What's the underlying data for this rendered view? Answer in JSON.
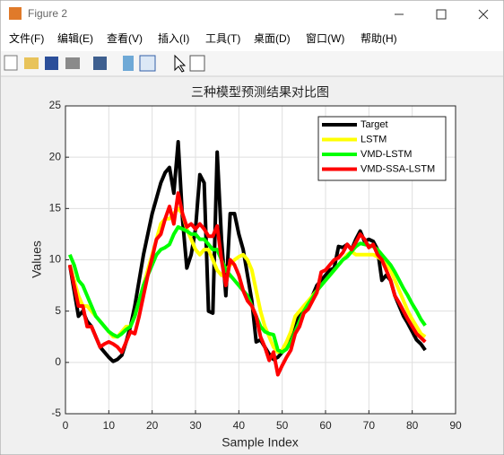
{
  "window": {
    "title": "Figure 2",
    "menu": [
      "文件(F)",
      "编辑(E)",
      "查看(V)",
      "插入(I)",
      "工具(T)",
      "桌面(D)",
      "窗口(W)",
      "帮助(H)"
    ]
  },
  "chart_data": {
    "type": "line",
    "title": "三种模型预测结果对比图",
    "x_label": "Sample Index",
    "y_label": "Values",
    "x": [
      1,
      2,
      3,
      4,
      5,
      6,
      7,
      8,
      9,
      10,
      11,
      12,
      13,
      14,
      15,
      16,
      17,
      18,
      19,
      20,
      21,
      22,
      23,
      24,
      25,
      26,
      27,
      28,
      29,
      30,
      31,
      32,
      33,
      34,
      35,
      36,
      37,
      38,
      39,
      40,
      41,
      42,
      43,
      44,
      45,
      46,
      47,
      48,
      49,
      50,
      51,
      52,
      53,
      54,
      55,
      56,
      57,
      58,
      59,
      60,
      61,
      62,
      63,
      64,
      65,
      66,
      67,
      68,
      69,
      70,
      71,
      72,
      73,
      74,
      75,
      76,
      77,
      78,
      79,
      80,
      81,
      82,
      83
    ],
    "series": [
      {
        "name": "Target",
        "color": "#000000",
        "values": [
          9.5,
          7,
          4.5,
          5,
          4,
          3.5,
          2.5,
          1.5,
          1,
          0.5,
          0.1,
          0.3,
          0.7,
          2,
          3.5,
          5.5,
          8,
          10.5,
          12.5,
          14.5,
          16,
          17.5,
          18.5,
          19,
          16.5,
          21.5,
          14,
          9.2,
          10.5,
          13,
          18.3,
          17.5,
          5,
          4.8,
          20.5,
          12,
          6.5,
          14.5,
          14.5,
          12.5,
          11,
          8.5,
          6,
          2,
          2.2,
          1.5,
          0.8,
          0.3,
          0.5,
          1,
          1.5,
          2.5,
          3.8,
          4.5,
          5,
          5.8,
          6.5,
          7.5,
          8,
          8.5,
          9,
          9.2,
          11.3,
          11.2,
          11.5,
          11,
          12,
          12.8,
          11.8,
          12,
          11.8,
          11,
          8,
          8.5,
          8,
          6.5,
          5.5,
          4.5,
          3.8,
          3,
          2.2,
          1.8,
          1.2
        ]
      },
      {
        "name": "LSTM",
        "color": "#ffff00",
        "values": [
          9.5,
          8,
          6.5,
          5.5,
          5.5,
          5,
          4.5,
          4,
          3.5,
          3,
          2.5,
          2.5,
          3,
          3.5,
          3.5,
          4.5,
          6,
          7.5,
          9,
          10.5,
          12,
          13.5,
          14,
          14,
          14.5,
          15,
          14.5,
          13,
          12,
          11,
          10.5,
          11,
          11,
          10,
          9,
          8.5,
          9,
          9.5,
          10,
          10.3,
          10.5,
          10,
          9,
          7,
          5,
          3.5,
          2.5,
          1.5,
          1,
          1.2,
          2,
          3,
          4.5,
          5,
          5.5,
          6,
          6.5,
          7,
          7.5,
          8,
          8.5,
          9,
          9.5,
          10,
          10.5,
          10.8,
          10.5,
          10.5,
          10.5,
          10.5,
          10.5,
          10.3,
          10,
          9.5,
          9,
          8,
          7,
          6,
          5,
          4.2,
          3.5,
          2.8,
          2.5
        ]
      },
      {
        "name": "VMD-LSTM",
        "color": "#00ff00",
        "values": [
          10.5,
          9.5,
          8,
          7.5,
          6.5,
          5.5,
          4.5,
          4,
          3.5,
          3,
          2.7,
          2.5,
          2.8,
          3.2,
          3.5,
          4.5,
          6,
          7.5,
          8.5,
          9.5,
          10.5,
          11,
          11.2,
          11.5,
          12.5,
          13.2,
          13,
          12.8,
          12.5,
          12.5,
          12,
          12,
          11.5,
          11,
          11,
          10,
          9,
          8.5,
          8,
          7.5,
          7,
          6.5,
          5.5,
          4.5,
          3.5,
          3,
          2.8,
          2.7,
          1.2,
          1,
          1.3,
          2,
          3,
          4,
          5,
          5.7,
          6.3,
          7,
          7.5,
          8,
          8.5,
          9,
          9.5,
          10,
          10.3,
          10.8,
          11.3,
          11.6,
          11.5,
          11.4,
          11.3,
          11,
          10.5,
          10,
          9.5,
          8.8,
          8,
          7.2,
          6.5,
          5.7,
          5,
          4.2,
          3.6
        ]
      },
      {
        "name": "VMD-SSA-LSTM",
        "color": "#ff0000",
        "values": [
          9.5,
          7.5,
          5.5,
          5.5,
          3.5,
          3.5,
          2.5,
          1.5,
          1.8,
          2,
          1.8,
          1.5,
          1,
          2,
          3,
          2.8,
          4.5,
          6.5,
          8.5,
          10.2,
          12,
          12.5,
          14,
          15.2,
          13.5,
          16.5,
          14.5,
          13.2,
          13.5,
          13,
          13.5,
          13,
          12.3,
          12.3,
          13.3,
          10,
          7.5,
          10,
          9.5,
          8.5,
          7,
          6,
          5.5,
          4.5,
          2.5,
          1.5,
          0.2,
          1,
          -1.2,
          -0.3,
          0.5,
          1.2,
          2.8,
          3.5,
          4.8,
          5.2,
          6,
          6.8,
          8.8,
          9,
          9.5,
          10,
          10.2,
          10.7,
          11.5,
          11,
          11.7,
          12.5,
          12,
          11.2,
          11.5,
          10.5,
          10,
          9,
          8,
          6.5,
          5.8,
          5,
          4.2,
          3.5,
          2.8,
          2.4,
          2
        ]
      }
    ],
    "xlim": [
      0,
      90
    ],
    "xticks": [
      0,
      10,
      20,
      30,
      40,
      50,
      60,
      70,
      80,
      90
    ],
    "ylim": [
      -5,
      25
    ],
    "yticks": [
      -5,
      0,
      5,
      10,
      15,
      20,
      25
    ],
    "grid": true,
    "legend": "northeast"
  }
}
